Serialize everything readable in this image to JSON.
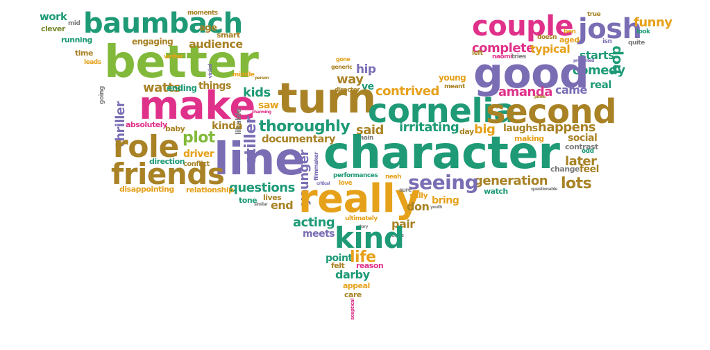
{
  "palette": {
    "green": "#1e9a76",
    "lime": "#82b93a",
    "pink": "#e0318a",
    "purple": "#7a6db4",
    "brown": "#a88225",
    "orange": "#e6a11a",
    "gray": "#7c7c7c",
    "olive": "#74882c"
  },
  "words": [
    "work",
    "clever",
    "running",
    "time",
    "leads",
    "mid",
    "baumbach",
    "engaging",
    "better",
    "writer",
    "moments",
    "age",
    "smart",
    "audience",
    "vinkel",
    "middle",
    "person",
    "gone",
    "generic",
    "hip",
    "way",
    "director",
    "ve",
    "young",
    "meant",
    "couple",
    "josh",
    "ben",
    "aged",
    "doesn",
    "isn",
    "look",
    "quite",
    "true",
    "funny",
    "hop",
    "complete",
    "typical",
    "left",
    "naomi",
    "tries",
    "starts",
    "presented",
    "comedy",
    "real",
    "came",
    "good",
    "amanda",
    "jamie",
    "make",
    "watts",
    "ending",
    "things",
    "going",
    "thriller",
    "kids",
    "contrived",
    "turn",
    "cornelia",
    "second",
    "absolutely",
    "baby",
    "saw",
    "charming",
    "likable",
    "kinda",
    "stiller",
    "thoroughly",
    "said",
    "irritating",
    "day",
    "big",
    "laughs",
    "happens",
    "social",
    "contrast",
    "odd",
    "role",
    "plot",
    "driver",
    "conflict",
    "documentary",
    "main",
    "making",
    "character",
    "line",
    "direction",
    "filmmaker",
    "younger",
    "filmmaker2",
    "later",
    "change",
    "feel",
    "friends",
    "questions",
    "performances",
    "love",
    "neah",
    "generation",
    "seeing",
    "disappointing",
    "relationship",
    "critical",
    "watch",
    "questionable",
    "lots",
    "really",
    "sure",
    "similar",
    "tone",
    "lives",
    "end",
    "don",
    "sally",
    "bring",
    "youth",
    "ultimately",
    "acting",
    "pair",
    "meets",
    "story",
    "terms",
    "kind",
    "point",
    "felt",
    "life",
    "reason",
    "darby",
    "appeal",
    "care",
    "sceptical"
  ]
}
